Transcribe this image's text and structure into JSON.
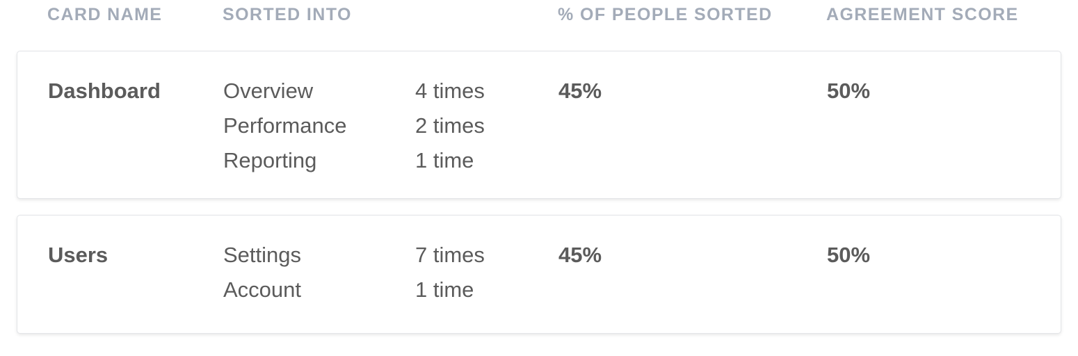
{
  "columns": {
    "card_name": "CARD NAME",
    "sorted_into": "SORTED INTO",
    "percent_sorted": "% OF PEOPLE SORTED",
    "agreement_score": "AGREEMENT SCORE"
  },
  "rows": [
    {
      "card_name": "Dashboard",
      "sorted_into": [
        {
          "category": "Overview",
          "count": "4 times"
        },
        {
          "category": "Performance",
          "count": "2 times"
        },
        {
          "category": "Reporting",
          "count": "1 time"
        }
      ],
      "percent_sorted": "45%",
      "agreement_score": "50%"
    },
    {
      "card_name": "Users",
      "sorted_into": [
        {
          "category": "Settings",
          "count": "7 times"
        },
        {
          "category": "Account",
          "count": "1 time"
        }
      ],
      "percent_sorted": "45%",
      "agreement_score": "50%"
    }
  ],
  "colors": {
    "header_text": "#a3abb8",
    "body_text": "#5b5b5b",
    "card_border": "#e3e5e8"
  }
}
